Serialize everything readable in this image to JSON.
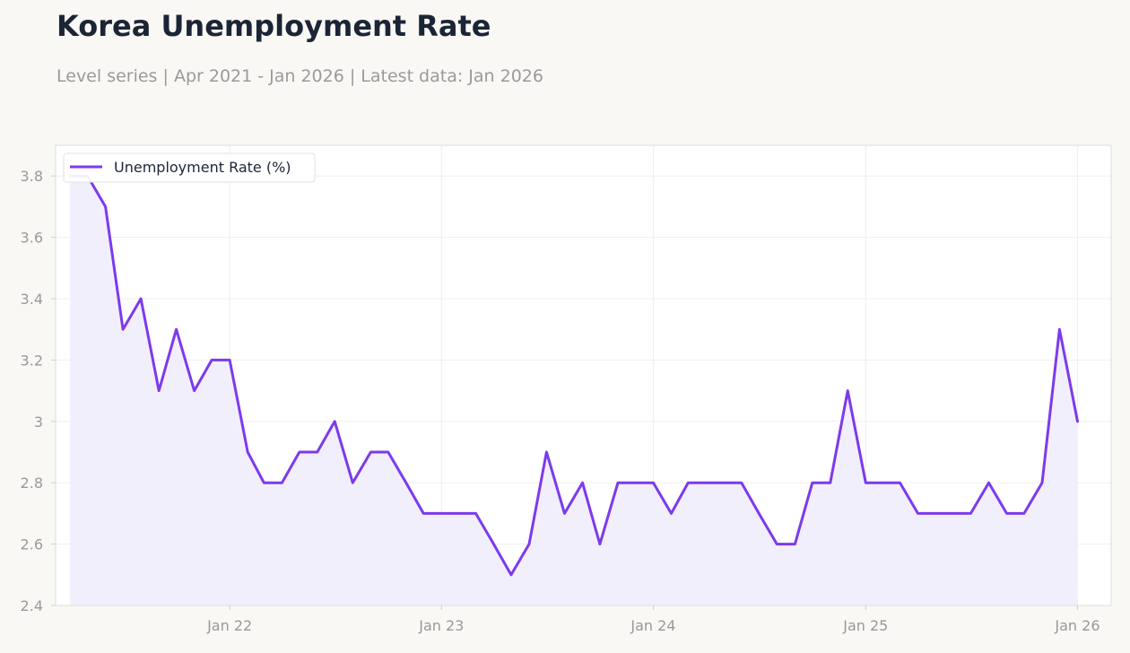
{
  "header": {
    "title": "Korea Unemployment Rate",
    "subtitle": "Level series | Apr 2021 - Jan 2026 | Latest data: Jan 2026"
  },
  "colors": {
    "line": "#7c3aed",
    "area": "#f1edfc",
    "grid": "#efefef",
    "border": "#dddddd"
  },
  "chart_data": {
    "type": "line",
    "title": "Korea Unemployment Rate",
    "subtitle": "Level series | Apr 2021 - Jan 2026 | Latest data: Jan 2026",
    "xlabel": "",
    "ylabel": "",
    "ylim": [
      2.4,
      3.9
    ],
    "yticks": [
      2.4,
      2.6,
      2.8,
      3.0,
      3.2,
      3.4,
      3.6,
      3.8
    ],
    "ytick_labels": [
      "2.4",
      "2.6",
      "2.8",
      "3",
      "3.2",
      "3.4",
      "3.6",
      "3.8"
    ],
    "xlim": [
      "2021-03-07",
      "2026-02-28"
    ],
    "xticks": [
      "2022-01-01",
      "2023-01-01",
      "2024-01-01",
      "2025-01-01",
      "2026-01-01"
    ],
    "xtick_labels": [
      "Jan 22",
      "Jan 23",
      "Jan 24",
      "Jan 25",
      "Jan 26"
    ],
    "grid": true,
    "legend": "top-left",
    "area_fill": true,
    "series": [
      {
        "name": "Unemployment Rate (%)",
        "x": [
          "2021-04",
          "2021-05",
          "2021-06",
          "2021-07",
          "2021-08",
          "2021-09",
          "2021-10",
          "2021-11",
          "2021-12",
          "2022-01",
          "2022-02",
          "2022-03",
          "2022-04",
          "2022-05",
          "2022-06",
          "2022-07",
          "2022-08",
          "2022-09",
          "2022-10",
          "2022-11",
          "2022-12",
          "2023-01",
          "2023-02",
          "2023-03",
          "2023-04",
          "2023-05",
          "2023-06",
          "2023-07",
          "2023-08",
          "2023-09",
          "2023-10",
          "2023-11",
          "2023-12",
          "2024-01",
          "2024-02",
          "2024-03",
          "2024-04",
          "2024-05",
          "2024-06",
          "2024-07",
          "2024-08",
          "2024-09",
          "2024-10",
          "2024-11",
          "2024-12",
          "2025-01",
          "2025-02",
          "2025-03",
          "2025-04",
          "2025-05",
          "2025-06",
          "2025-07",
          "2025-08",
          "2025-09",
          "2025-10",
          "2025-11",
          "2025-12",
          "2026-01"
        ],
        "values": [
          3.8,
          3.8,
          3.7,
          3.3,
          3.4,
          3.1,
          3.3,
          3.1,
          3.2,
          3.2,
          2.9,
          2.8,
          2.8,
          2.9,
          2.9,
          3.0,
          2.8,
          2.9,
          2.9,
          2.8,
          2.7,
          2.7,
          2.7,
          2.7,
          2.6,
          2.5,
          2.6,
          2.9,
          2.7,
          2.8,
          2.6,
          2.8,
          2.8,
          2.8,
          2.7,
          2.8,
          2.8,
          2.8,
          2.8,
          2.7,
          2.6,
          2.6,
          2.8,
          2.8,
          3.1,
          2.8,
          2.8,
          2.8,
          2.7,
          2.7,
          2.7,
          2.7,
          2.8,
          2.7,
          2.7,
          2.8,
          3.3,
          3.0
        ]
      }
    ]
  }
}
